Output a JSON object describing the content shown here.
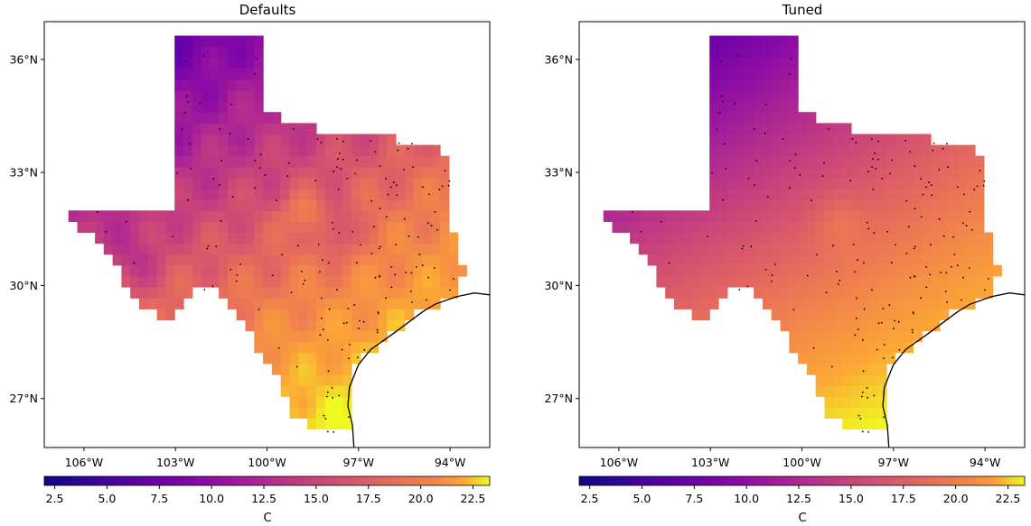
{
  "panels": [
    {
      "title": "Defaults",
      "variant": "defaults"
    },
    {
      "title": "Tuned",
      "variant": "tuned"
    }
  ],
  "lat_ticks": [
    "36°N",
    "33°N",
    "30°N",
    "27°N"
  ],
  "lon_ticks": [
    "106°W",
    "103°W",
    "100°W",
    "97°W",
    "94°W"
  ],
  "colorbar": {
    "label": "C",
    "colormap": "plasma",
    "range": [
      2.0,
      23.3
    ],
    "ticks": [
      "2.5",
      "5.0",
      "7.5",
      "10.0",
      "12.5",
      "15.0",
      "17.5",
      "20.0",
      "22.5"
    ]
  },
  "colors": {
    "coastline": "#000000",
    "station_dot": "#000000"
  }
}
